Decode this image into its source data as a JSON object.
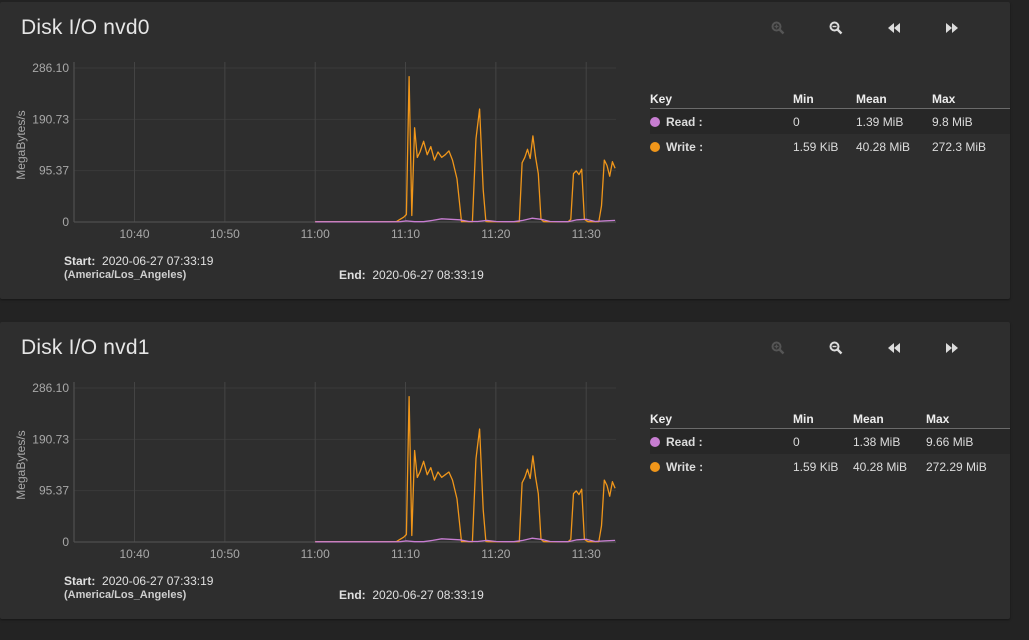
{
  "colors": {
    "read": "#c77dd1",
    "write": "#f0961a"
  },
  "toolbar": {
    "zoom_in": "zoom-in-icon",
    "zoom_out": "zoom-out-icon",
    "step_back": "rewind-icon",
    "step_forward": "fast-forward-icon"
  },
  "panels": [
    {
      "title": "Disk I/O nvd0",
      "start_label": "Start:",
      "start": "2020-06-27 07:33:19",
      "timezone": "(America/Los_Angeles)",
      "end_label": "End:",
      "end": "2020-06-27 08:33:19",
      "legend": {
        "headers": [
          "Key",
          "Min",
          "Mean",
          "Max"
        ],
        "rows": [
          {
            "name": "Read :",
            "min": "0",
            "mean": "1.39 MiB",
            "max": "9.8 MiB"
          },
          {
            "name": "Write :",
            "min": "1.59 KiB",
            "mean": "40.28 MiB",
            "max": "272.3 MiB"
          }
        ]
      }
    },
    {
      "title": "Disk I/O nvd1",
      "start_label": "Start:",
      "start": "2020-06-27 07:33:19",
      "timezone": "(America/Los_Angeles)",
      "end_label": "End:",
      "end": "2020-06-27 08:33:19",
      "legend": {
        "headers": [
          "Key",
          "Min",
          "Mean",
          "Max"
        ],
        "rows": [
          {
            "name": "Read :",
            "min": "0",
            "mean": "1.38 MiB",
            "max": "9.66 MiB"
          },
          {
            "name": "Write :",
            "min": "1.59 KiB",
            "mean": "40.28 MiB",
            "max": "272.29 MiB"
          }
        ]
      }
    }
  ],
  "chart_data": [
    {
      "type": "line",
      "ylabel": "MegaBytes/s",
      "yticks": [
        "0",
        "95.37",
        "190.73",
        "286.10"
      ],
      "ytick_values": [
        0,
        95.37,
        190.73,
        286.1
      ],
      "ylim": [
        0,
        286.1
      ],
      "xticks": [
        "10:40",
        "10:50",
        "11:00",
        "11:10",
        "11:20",
        "11:30"
      ],
      "xtick_values": [
        40,
        50,
        60,
        70,
        80,
        90
      ],
      "xlim": [
        33.3,
        93.3
      ],
      "series": [
        {
          "name": "Write",
          "color": "#f0961a",
          "x": [
            60,
            62,
            64,
            66,
            68,
            69,
            69.4,
            69.8,
            70.1,
            70.4,
            70.7,
            71.0,
            71.3,
            71.6,
            72.0,
            72.4,
            72.8,
            73.2,
            73.6,
            74.0,
            74.4,
            74.8,
            75.2,
            75.7,
            76.2,
            76.6,
            77.0,
            77.4,
            77.8,
            78.2,
            78.6,
            78.9,
            79.2,
            79.5,
            79.8,
            80.1,
            80.6,
            81.2,
            82.0,
            82.6,
            82.9,
            83.2,
            83.5,
            83.8,
            84.1,
            84.4,
            84.7,
            85.0,
            85.3,
            85.6,
            86.0,
            86.6,
            87.2,
            87.7,
            88.0,
            88.3,
            88.6,
            88.9,
            89.2,
            89.5,
            89.8,
            90.2,
            90.8,
            91.4,
            91.7,
            92.0,
            92.3,
            92.6,
            92.9,
            93.2
          ],
          "y": [
            0.5,
            0.5,
            0.5,
            0.5,
            0.5,
            1,
            5,
            9,
            14,
            270,
            12,
            175,
            120,
            130,
            150,
            125,
            140,
            115,
            130,
            120,
            125,
            132,
            115,
            80,
            0.5,
            1,
            0.5,
            0.5,
            155,
            210,
            60,
            1,
            0.5,
            0.5,
            0.5,
            0.5,
            0.5,
            0.5,
            0.5,
            0.5,
            110,
            120,
            135,
            118,
            160,
            120,
            90,
            5,
            0.5,
            0.5,
            0.5,
            0.5,
            0.5,
            0.5,
            0.5,
            5,
            90,
            95,
            88,
            98,
            5,
            0.5,
            0.5,
            0.5,
            30,
            115,
            105,
            85,
            112,
            100
          ]
        },
        {
          "name": "Read",
          "color": "#c77dd1",
          "x": [
            60,
            68,
            69.4,
            70.1,
            71,
            72,
            73,
            74,
            75,
            76,
            77,
            78,
            79,
            80,
            81,
            82,
            83,
            84,
            85,
            86,
            87,
            88,
            89,
            90,
            91,
            92,
            93.2
          ],
          "y": [
            0.3,
            0.3,
            0.5,
            2,
            0.5,
            0.5,
            3,
            6,
            5,
            4,
            1,
            1,
            3,
            1,
            0.5,
            0.5,
            3,
            7,
            5,
            1,
            0.5,
            0.5,
            4,
            5,
            1,
            2,
            3
          ]
        }
      ]
    },
    {
      "type": "line",
      "ylabel": "MegaBytes/s",
      "yticks": [
        "0",
        "95.37",
        "190.73",
        "286.10"
      ],
      "ytick_values": [
        0,
        95.37,
        190.73,
        286.1
      ],
      "ylim": [
        0,
        286.1
      ],
      "xticks": [
        "10:40",
        "10:50",
        "11:00",
        "11:10",
        "11:20",
        "11:30"
      ],
      "xtick_values": [
        40,
        50,
        60,
        70,
        80,
        90
      ],
      "xlim": [
        33.3,
        93.3
      ],
      "series": [
        {
          "name": "Write",
          "color": "#f0961a",
          "x": [
            60,
            62,
            64,
            66,
            68,
            69,
            69.4,
            69.8,
            70.1,
            70.4,
            70.7,
            71.0,
            71.3,
            71.6,
            72.0,
            72.4,
            72.8,
            73.2,
            73.6,
            74.0,
            74.4,
            74.8,
            75.2,
            75.7,
            76.2,
            76.6,
            77.0,
            77.4,
            77.8,
            78.2,
            78.6,
            78.9,
            79.2,
            79.5,
            79.8,
            80.1,
            80.6,
            81.2,
            82.0,
            82.6,
            82.9,
            83.2,
            83.5,
            83.8,
            84.1,
            84.4,
            84.7,
            85.0,
            85.3,
            85.6,
            86.0,
            86.6,
            87.2,
            87.7,
            88.0,
            88.3,
            88.6,
            88.9,
            89.2,
            89.5,
            89.8,
            90.2,
            90.8,
            91.4,
            91.7,
            92.0,
            92.3,
            92.6,
            92.9,
            93.2
          ],
          "y": [
            0.5,
            0.5,
            0.5,
            0.5,
            0.5,
            1,
            5,
            9,
            14,
            270,
            12,
            170,
            120,
            130,
            150,
            125,
            138,
            115,
            130,
            120,
            125,
            130,
            115,
            80,
            0.5,
            1,
            0.5,
            0.5,
            155,
            210,
            60,
            1,
            0.5,
            0.5,
            0.5,
            0.5,
            0.5,
            0.5,
            0.5,
            0.5,
            110,
            120,
            135,
            118,
            160,
            120,
            90,
            5,
            0.5,
            0.5,
            0.5,
            0.5,
            0.5,
            0.5,
            0.5,
            5,
            90,
            95,
            88,
            98,
            5,
            0.5,
            0.5,
            0.5,
            30,
            115,
            105,
            85,
            112,
            100
          ]
        },
        {
          "name": "Read",
          "color": "#c77dd1",
          "x": [
            60,
            68,
            69.4,
            70.1,
            71,
            72,
            73,
            74,
            75,
            76,
            77,
            78,
            79,
            80,
            81,
            82,
            83,
            84,
            85,
            86,
            87,
            88,
            89,
            90,
            91,
            92,
            93.2
          ],
          "y": [
            0.3,
            0.3,
            0.5,
            2,
            0.5,
            0.5,
            3,
            6,
            5,
            4,
            1,
            1,
            3,
            1,
            0.5,
            0.5,
            3,
            7,
            5,
            1,
            0.5,
            0.5,
            4,
            5,
            1,
            2,
            3
          ]
        }
      ]
    }
  ]
}
